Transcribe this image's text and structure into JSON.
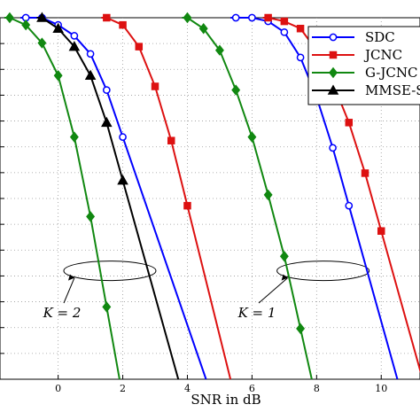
{
  "chart_data": {
    "type": "line",
    "xlabel": "SNR in dB",
    "ylabel": "",
    "x_ticks": [
      0,
      2,
      4,
      6,
      8,
      10
    ],
    "xlim": [
      -1.8,
      11.2
    ],
    "ylim": [
      0,
      1
    ],
    "grid": true,
    "legend_position": "top-right",
    "series": [
      {
        "name": "SDC",
        "color": "#0000ff",
        "marker": "circle",
        "x": [
          -1,
          -0.5,
          0,
          0.5,
          1,
          1.5,
          2,
          5.5,
          6,
          6.5,
          7,
          7.5,
          8,
          8.5,
          9
        ],
        "y": [
          0.0,
          0.0,
          0.02,
          0.05,
          0.1,
          0.2,
          0.33,
          0.0,
          0.0,
          0.01,
          0.04,
          0.11,
          0.22,
          0.36,
          0.52
        ]
      },
      {
        "name": "JCNC",
        "color": "#dd1111",
        "marker": "square",
        "x": [
          1.5,
          2,
          2.5,
          3,
          3.5,
          4,
          6.5,
          7,
          7.5,
          8,
          8.5,
          9,
          9.5,
          10
        ],
        "y": [
          0.0,
          0.02,
          0.08,
          0.19,
          0.34,
          0.52,
          0.0,
          0.01,
          0.03,
          0.09,
          0.18,
          0.29,
          0.43,
          0.59
        ]
      },
      {
        "name": "G-JCNC",
        "color": "#118811",
        "marker": "diamond",
        "x": [
          -1.5,
          -1,
          -0.5,
          0,
          0.5,
          1,
          1.5,
          4,
          4.5,
          5,
          5.5,
          6,
          6.5,
          7,
          7.5
        ],
        "y": [
          0.0,
          0.02,
          0.07,
          0.16,
          0.33,
          0.55,
          0.8,
          0.0,
          0.03,
          0.09,
          0.2,
          0.33,
          0.49,
          0.66,
          0.86
        ]
      },
      {
        "name": "MMSE-SIC",
        "color": "#000000",
        "marker": "triangle",
        "x": [
          -0.5,
          0,
          0.5,
          1,
          1.5,
          2
        ],
        "y": [
          0.0,
          0.03,
          0.08,
          0.16,
          0.29,
          0.45
        ]
      }
    ],
    "annotations": [
      {
        "label": "K = 2"
      },
      {
        "label": "K = 1"
      }
    ]
  }
}
